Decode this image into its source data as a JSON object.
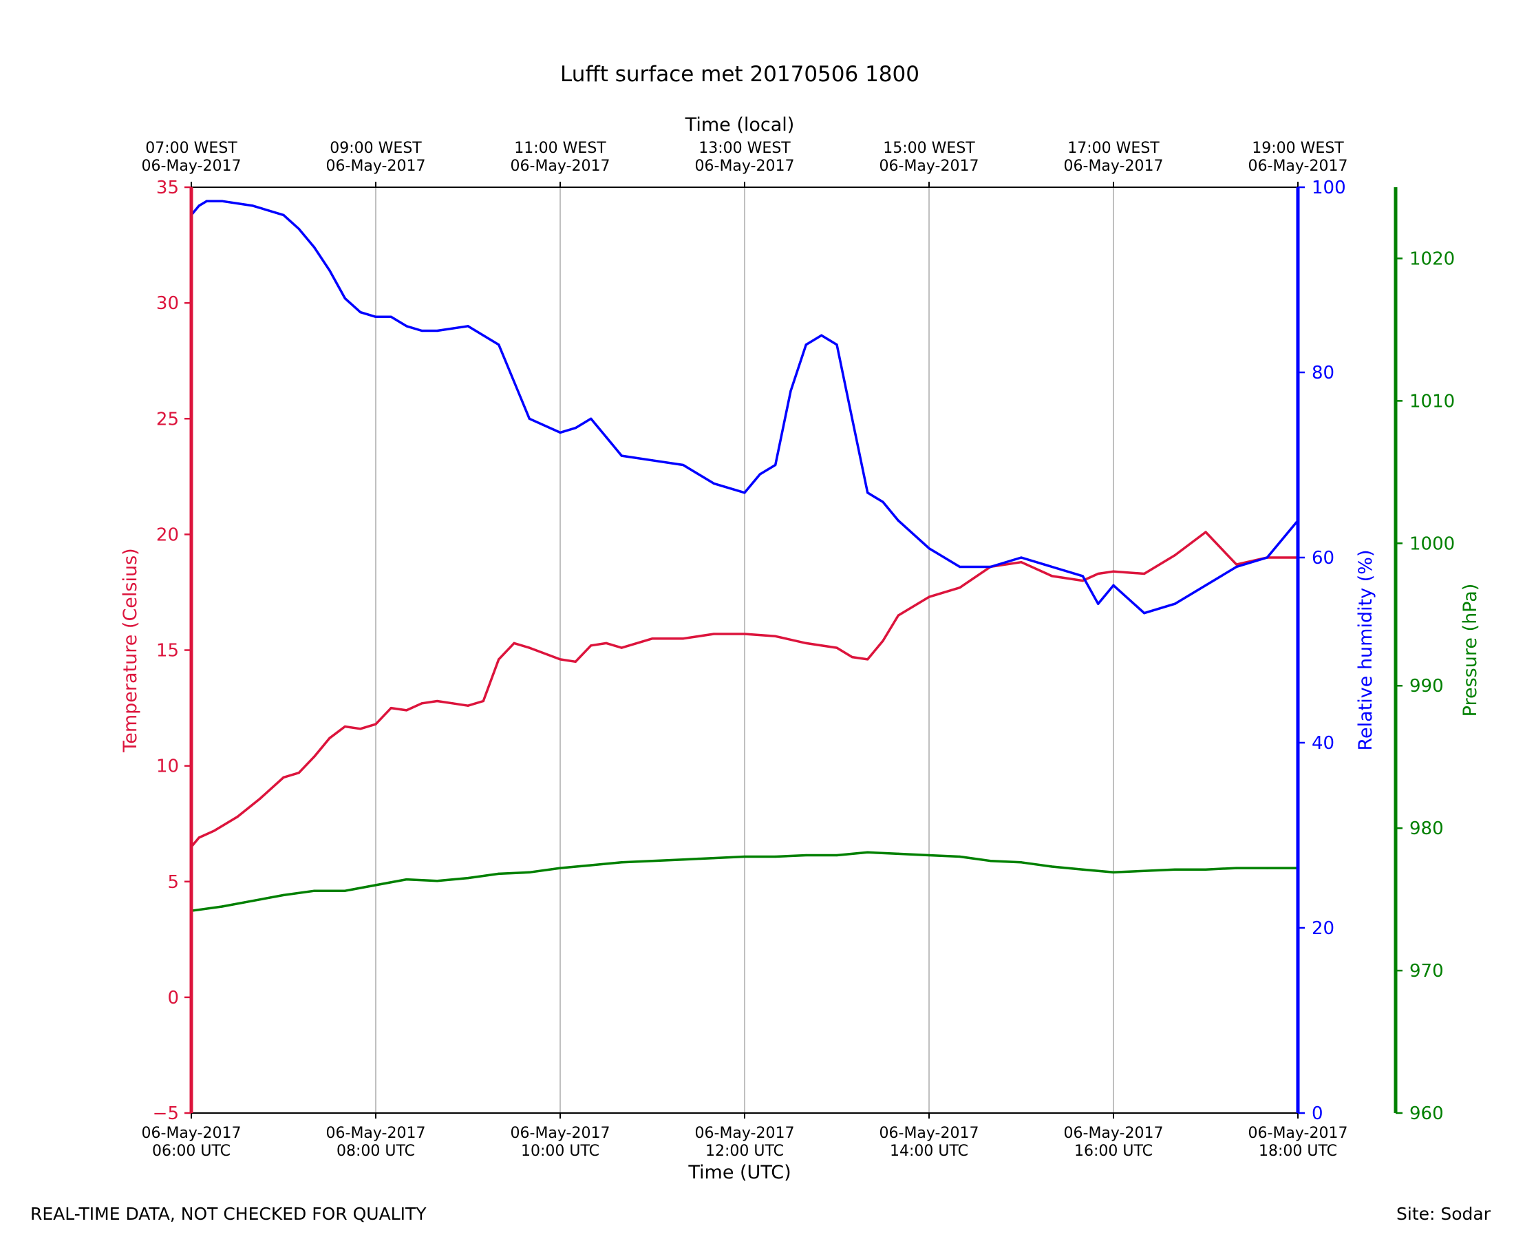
{
  "chart_data": {
    "type": "line",
    "title": "Lufft surface met 20170506 1800",
    "xlabel": "Time (UTC)",
    "x2label": "Time (local)",
    "xlim": [
      "2017-05-06T06:00Z",
      "2017-05-06T18:00Z"
    ],
    "x_ticks": [
      {
        "time": "2017-05-06T06:00Z",
        "line1": "06-May-2017",
        "line2": "06:00 UTC"
      },
      {
        "time": "2017-05-06T08:00Z",
        "line1": "06-May-2017",
        "line2": "08:00 UTC"
      },
      {
        "time": "2017-05-06T10:00Z",
        "line1": "06-May-2017",
        "line2": "10:00 UTC"
      },
      {
        "time": "2017-05-06T12:00Z",
        "line1": "06-May-2017",
        "line2": "12:00 UTC"
      },
      {
        "time": "2017-05-06T14:00Z",
        "line1": "06-May-2017",
        "line2": "14:00 UTC"
      },
      {
        "time": "2017-05-06T16:00Z",
        "line1": "06-May-2017",
        "line2": "16:00 UTC"
      },
      {
        "time": "2017-05-06T18:00Z",
        "line1": "06-May-2017",
        "line2": "18:00 UTC"
      }
    ],
    "x2_ticks": [
      {
        "time": "2017-05-06T06:00Z",
        "line1": "07:00 WEST",
        "line2": "06-May-2017"
      },
      {
        "time": "2017-05-06T08:00Z",
        "line1": "09:00 WEST",
        "line2": "06-May-2017"
      },
      {
        "time": "2017-05-06T10:00Z",
        "line1": "11:00 WEST",
        "line2": "06-May-2017"
      },
      {
        "time": "2017-05-06T12:00Z",
        "line1": "13:00 WEST",
        "line2": "06-May-2017"
      },
      {
        "time": "2017-05-06T14:00Z",
        "line1": "15:00 WEST",
        "line2": "06-May-2017"
      },
      {
        "time": "2017-05-06T16:00Z",
        "line1": "17:00 WEST",
        "line2": "06-May-2017"
      },
      {
        "time": "2017-05-06T18:00Z",
        "line1": "19:00 WEST",
        "line2": "06-May-2017"
      }
    ],
    "grid": "x-only",
    "axes": [
      {
        "id": "temp",
        "label": "Temperature (Celsius)",
        "ylim": [
          -5,
          35
        ],
        "ticks": [
          -5,
          0,
          5,
          10,
          15,
          20,
          25,
          30,
          35
        ],
        "tick_labels": [
          "−5",
          "0",
          "5",
          "10",
          "15",
          "20",
          "25",
          "30",
          "35"
        ],
        "color": "#dc143c",
        "position": "left"
      },
      {
        "id": "rh",
        "label": "Relative humidity (%)",
        "ylim": [
          0,
          100
        ],
        "ticks": [
          0,
          20,
          40,
          60,
          80,
          100
        ],
        "tick_labels": [
          "0",
          "20",
          "40",
          "60",
          "80",
          "100"
        ],
        "color": "#0000ff",
        "position": "right"
      },
      {
        "id": "pres",
        "label": "Pressure (hPa)",
        "ylim": [
          960,
          1025
        ],
        "ticks": [
          960,
          970,
          980,
          990,
          1000,
          1010,
          1020
        ],
        "tick_labels": [
          "960",
          "970",
          "980",
          "990",
          "1000",
          "1010",
          "1020"
        ],
        "color": "#008000",
        "position": "outer-right"
      }
    ],
    "series": [
      {
        "axis": "temp",
        "color": "#dc143c",
        "x": [
          "06:00",
          "06:05",
          "06:15",
          "06:30",
          "06:45",
          "07:00",
          "07:10",
          "07:20",
          "07:30",
          "07:40",
          "07:50",
          "08:00",
          "08:10",
          "08:20",
          "08:30",
          "08:40",
          "08:50",
          "09:00",
          "09:10",
          "09:20",
          "09:30",
          "09:40",
          "10:00",
          "10:10",
          "10:20",
          "10:30",
          "10:40",
          "11:00",
          "11:20",
          "11:40",
          "12:00",
          "12:20",
          "12:40",
          "13:00",
          "13:10",
          "13:20",
          "13:30",
          "13:40",
          "14:00",
          "14:20",
          "14:40",
          "15:00",
          "15:20",
          "15:40",
          "15:50",
          "16:00",
          "16:20",
          "16:40",
          "17:00",
          "17:20",
          "17:40",
          "18:00"
        ],
        "y": [
          6.5,
          6.9,
          7.2,
          7.8,
          8.6,
          9.5,
          9.7,
          10.4,
          11.2,
          11.7,
          11.6,
          11.8,
          12.5,
          12.4,
          12.7,
          12.8,
          12.7,
          12.6,
          12.8,
          14.6,
          15.3,
          15.1,
          14.6,
          14.5,
          15.2,
          15.3,
          15.1,
          15.5,
          15.5,
          15.7,
          15.7,
          15.6,
          15.3,
          15.1,
          14.7,
          14.6,
          15.4,
          16.5,
          17.3,
          17.7,
          18.6,
          18.8,
          18.2,
          18.0,
          18.3,
          18.4,
          18.3,
          19.1,
          20.1,
          18.7,
          19.0,
          19.0
        ]
      },
      {
        "axis": "rh",
        "color": "#0000ff",
        "x": [
          "06:00",
          "06:05",
          "06:10",
          "06:20",
          "06:40",
          "07:00",
          "07:10",
          "07:20",
          "07:30",
          "07:40",
          "07:50",
          "08:00",
          "08:10",
          "08:20",
          "08:30",
          "08:40",
          "09:00",
          "09:10",
          "09:20",
          "09:30",
          "09:40",
          "10:00",
          "10:10",
          "10:20",
          "10:30",
          "10:40",
          "11:00",
          "11:20",
          "11:40",
          "12:00",
          "12:10",
          "12:20",
          "12:30",
          "12:40",
          "12:50",
          "13:00",
          "13:10",
          "13:20",
          "13:30",
          "13:40",
          "14:00",
          "14:20",
          "14:40",
          "15:00",
          "15:20",
          "15:40",
          "15:50",
          "16:00",
          "16:20",
          "16:40",
          "17:00",
          "17:20",
          "17:40",
          "18:00"
        ],
        "y": [
          97,
          98,
          98.5,
          98.5,
          98,
          97,
          95.5,
          93.5,
          91,
          88,
          86.5,
          86,
          86,
          85,
          84.5,
          84.5,
          85,
          84,
          83,
          79,
          75,
          73.5,
          74,
          75,
          73,
          71,
          70.5,
          70,
          68,
          67,
          69,
          70,
          78,
          83,
          84,
          83,
          75,
          67,
          66,
          64,
          61,
          59,
          59,
          60,
          59,
          58,
          55,
          57,
          54,
          55,
          57,
          59,
          60,
          64
        ]
      },
      {
        "axis": "pres",
        "color": "#008000",
        "x": [
          "06:00",
          "06:20",
          "06:40",
          "07:00",
          "07:20",
          "07:40",
          "08:00",
          "08:20",
          "08:40",
          "09:00",
          "09:20",
          "09:40",
          "10:00",
          "10:20",
          "10:40",
          "11:00",
          "11:20",
          "11:40",
          "12:00",
          "12:20",
          "12:40",
          "13:00",
          "13:20",
          "13:40",
          "14:00",
          "14:20",
          "14:40",
          "15:00",
          "15:20",
          "15:40",
          "16:00",
          "16:20",
          "16:40",
          "17:00",
          "17:20",
          "17:40",
          "18:00"
        ],
        "y": [
          974.2,
          974.5,
          974.9,
          975.3,
          975.6,
          975.6,
          976.0,
          976.4,
          976.3,
          976.5,
          976.8,
          976.9,
          977.2,
          977.4,
          977.6,
          977.7,
          977.8,
          977.9,
          978.0,
          978.0,
          978.1,
          978.1,
          978.3,
          978.2,
          978.1,
          978.0,
          977.7,
          977.6,
          977.3,
          977.1,
          976.9,
          977.0,
          977.1,
          977.1,
          977.2,
          977.2,
          977.2
        ]
      }
    ]
  },
  "footer": {
    "left": "REAL-TIME DATA, NOT CHECKED FOR QUALITY",
    "right": "Site: Sodar"
  }
}
